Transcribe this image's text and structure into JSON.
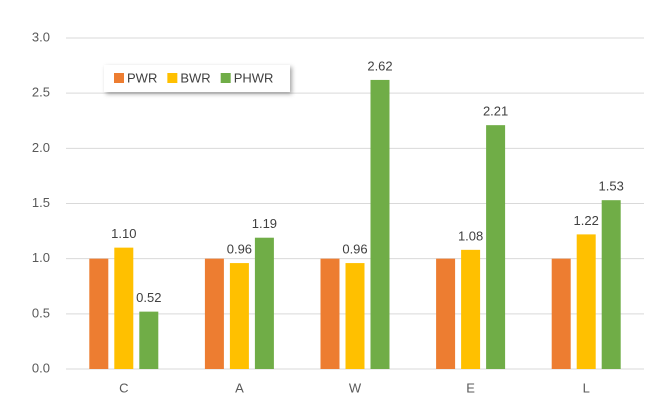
{
  "chart_data": {
    "type": "bar",
    "categories": [
      "C",
      "A",
      "W",
      "E",
      "L"
    ],
    "series": [
      {
        "name": "PWR",
        "color": "#ed7d31",
        "values": [
          1.0,
          1.0,
          1.0,
          1.0,
          1.0
        ]
      },
      {
        "name": "BWR",
        "color": "#ffc000",
        "values": [
          1.1,
          0.96,
          0.96,
          1.08,
          1.22
        ],
        "value_labels": [
          "1.10",
          "0.96",
          "0.96",
          "1.08",
          "1.22"
        ]
      },
      {
        "name": "PHWR",
        "color": "#70ad47",
        "values": [
          0.52,
          1.19,
          2.62,
          2.21,
          1.53
        ],
        "value_labels": [
          "0.52",
          "1.19",
          "2.62",
          "2.21",
          "1.53"
        ]
      }
    ],
    "ylim": [
      0,
      3
    ],
    "yticks": [
      {
        "value": 0,
        "label": "0.0"
      },
      0.5,
      {
        "value": 1,
        "label": "1.0"
      },
      1.5,
      {
        "value": 2,
        "label": "2.0"
      },
      2.5,
      {
        "value": 3,
        "label": "3.0"
      }
    ],
    "grid": true,
    "legend": "top-left"
  }
}
